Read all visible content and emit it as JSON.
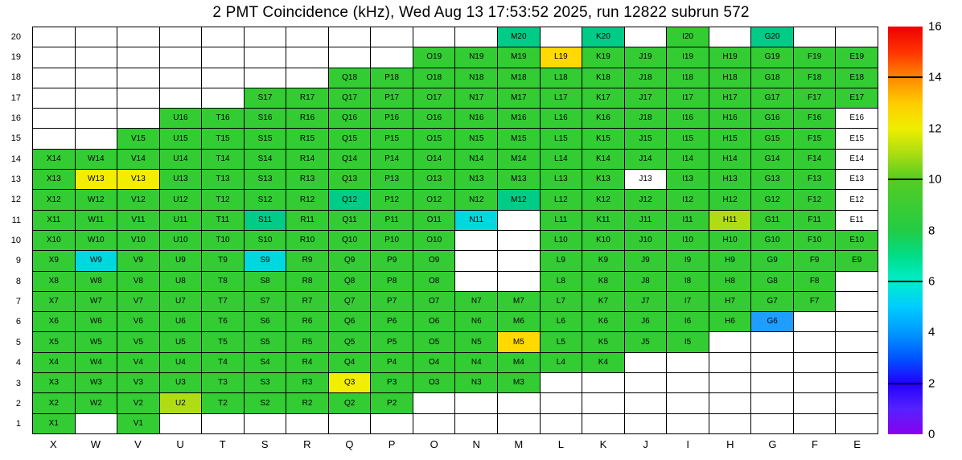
{
  "chart_data": {
    "type": "heatmap",
    "title": "2 PMT Coincidence (kHz), Wed Aug 13 17:53:52 2025, run 12822 subrun 572",
    "columns": [
      "X",
      "W",
      "V",
      "U",
      "T",
      "S",
      "R",
      "Q",
      "P",
      "O",
      "N",
      "M",
      "L",
      "K",
      "J",
      "I",
      "H",
      "G",
      "F",
      "E"
    ],
    "rows": [
      20,
      19,
      18,
      17,
      16,
      15,
      14,
      13,
      12,
      11,
      10,
      9,
      8,
      7,
      6,
      5,
      4,
      3,
      2,
      1
    ],
    "legend": {
      "position": "right",
      "min": 0,
      "max": 16,
      "tick_labels": [
        16,
        14,
        12,
        10,
        8,
        6,
        4,
        2,
        0
      ],
      "bar_tick_values": [
        14,
        10,
        6,
        2
      ]
    },
    "palette": {
      "g": {
        "hex": "#33cc33",
        "approx_value": 9.5
      },
      "t": {
        "hex": "#00cc88",
        "approx_value": 7
      },
      "c": {
        "hex": "#00d8e0",
        "approx_value": 5.5
      },
      "b": {
        "hex": "#1e9eff",
        "approx_value": 4.3
      },
      "v": {
        "hex": "#b0dc14",
        "approx_value": 11.2
      },
      "y": {
        "hex": "#f2ee00",
        "approx_value": 12.3
      },
      "d": {
        "hex": "#ffd900",
        "approx_value": 12.8
      },
      "w": {
        "hex": "#ffffff",
        "approx_value": null
      }
    },
    "grid": {
      "20": "...........t.t.g.t..",
      "19": ".........gggdggggggg",
      "18": ".......ggggggggggggg",
      "17": ".....ggggggggggggggg",
      "16": "...ggggggggggggggggw",
      "15": "..gggggggggggggggggw",
      "14": "gggggggggggggggggggw",
      "13": "gyygggggggggggwggggw",
      "12": "gggggggtgggtgggggggw",
      "11": "gggggtggggc.ggggvggw",
      "10": "gggggggggg..gggggggg",
      "9": "gcgggcgggg..gggggggg",
      "8": "gggggggggg..ggggggg.",
      "7": "ggggggggggggggggggg.",
      "6": "gggggggggggggggggb..",
      "5": "gggggggggggdgggg....",
      "4": "gggggggggggggg......",
      "3": "gggggggygggg........",
      "2": "gggvggggg...........",
      "1": "g.g................."
    },
    "label_overrides": {
      "J16": "J18"
    },
    "colorbar_gradient": [
      {
        "v": 0,
        "hex": "#8800ee"
      },
      {
        "v": 1,
        "hex": "#5522ff"
      },
      {
        "v": 2,
        "hex": "#2200ff"
      },
      {
        "v": 3,
        "hex": "#0055ff"
      },
      {
        "v": 4,
        "hex": "#0099ff"
      },
      {
        "v": 5,
        "hex": "#00ccff"
      },
      {
        "v": 6,
        "hex": "#00eecc"
      },
      {
        "v": 7,
        "hex": "#00dd88"
      },
      {
        "v": 8,
        "hex": "#22cc44"
      },
      {
        "v": 10,
        "hex": "#55cc22"
      },
      {
        "v": 11,
        "hex": "#aadd11"
      },
      {
        "v": 12,
        "hex": "#eeee00"
      },
      {
        "v": 13,
        "hex": "#ffcc00"
      },
      {
        "v": 14,
        "hex": "#ff8800"
      },
      {
        "v": 15,
        "hex": "#ff3300"
      },
      {
        "v": 16,
        "hex": "#ee0000"
      }
    ]
  }
}
